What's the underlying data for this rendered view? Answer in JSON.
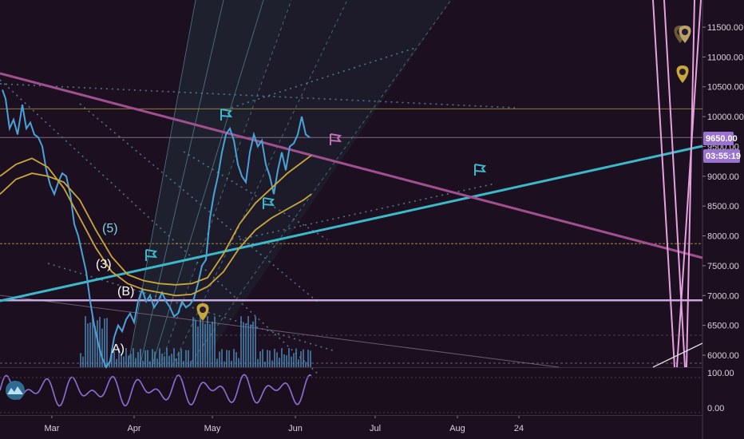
{
  "colors": {
    "background": "#1c0f1f",
    "price": "#4aa3d8",
    "ma": "#c9a63c",
    "trend_cyan": "#3bb8c9",
    "trend_magenta": "#a0508f",
    "horizontal_violet": "#c7a9dd",
    "oscillator": "#8e6fd6",
    "price_tag": "#9a72d0"
  },
  "chart_data": {
    "type": "line",
    "instrument_price_label": "9650.00",
    "countdown_label": "03:55:19",
    "x_ticks": [
      "Mar",
      "Apr",
      "May",
      "Jun",
      "Jul",
      "Aug",
      "24"
    ],
    "y_ticks": [
      "11500.00",
      "11000.00",
      "10500.00",
      "10000.00",
      "9500.00",
      "9000.00",
      "8500.00",
      "8000.00",
      "7500.00",
      "7000.00",
      "6500.00",
      "6000.00"
    ],
    "ylim": [
      5850,
      11700
    ],
    "oscillator_ticks": [
      "100.00",
      "0.00"
    ],
    "horizontal_levels": [
      10130,
      9650,
      7870,
      6920
    ],
    "wave_labels": [
      "(5)",
      "(3)",
      "(B)",
      "A)"
    ],
    "series": [
      {
        "name": "",
        "style": "price",
        "points": [
          [
            3,
            10450
          ],
          [
            7,
            10300
          ],
          [
            12,
            9800
          ],
          [
            17,
            9950
          ],
          [
            22,
            9700
          ],
          [
            28,
            10200
          ],
          [
            33,
            9800
          ],
          [
            38,
            9900
          ],
          [
            43,
            9700
          ],
          [
            48,
            9650
          ],
          [
            53,
            9500
          ],
          [
            58,
            9100
          ],
          [
            63,
            8850
          ],
          [
            68,
            8700
          ],
          [
            73,
            8900
          ],
          [
            78,
            9050
          ],
          [
            83,
            9000
          ],
          [
            88,
            8700
          ],
          [
            93,
            8200
          ],
          [
            98,
            8000
          ],
          [
            103,
            7700
          ],
          [
            108,
            7400
          ],
          [
            113,
            6900
          ],
          [
            118,
            6500
          ],
          [
            123,
            6200
          ],
          [
            128,
            5950
          ],
          [
            133,
            5800
          ],
          [
            138,
            5900
          ],
          [
            143,
            6300
          ],
          [
            148,
            6500
          ],
          [
            153,
            6400
          ],
          [
            158,
            6600
          ],
          [
            163,
            6700
          ],
          [
            168,
            6550
          ],
          [
            173,
            6900
          ],
          [
            178,
            7100
          ],
          [
            183,
            6900
          ],
          [
            188,
            7000
          ],
          [
            193,
            6800
          ],
          [
            198,
            6900
          ],
          [
            203,
            7050
          ],
          [
            208,
            6900
          ],
          [
            213,
            6800
          ],
          [
            218,
            6650
          ],
          [
            223,
            6700
          ],
          [
            228,
            6900
          ],
          [
            233,
            6800
          ],
          [
            238,
            6850
          ],
          [
            243,
            6950
          ],
          [
            248,
            7200
          ],
          [
            253,
            7500
          ],
          [
            258,
            7600
          ],
          [
            263,
            8300
          ],
          [
            268,
            8700
          ],
          [
            273,
            9000
          ],
          [
            278,
            9400
          ],
          [
            283,
            9700
          ],
          [
            288,
            9800
          ],
          [
            293,
            9600
          ],
          [
            298,
            9200
          ],
          [
            303,
            9000
          ],
          [
            308,
            8900
          ],
          [
            313,
            9400
          ],
          [
            318,
            9700
          ],
          [
            323,
            9500
          ],
          [
            328,
            9600
          ],
          [
            333,
            9200
          ],
          [
            338,
            9000
          ],
          [
            343,
            8700
          ],
          [
            348,
            9100
          ],
          [
            353,
            9400
          ],
          [
            358,
            9100
          ],
          [
            363,
            9500
          ],
          [
            368,
            9550
          ],
          [
            373,
            9700
          ],
          [
            378,
            10000
          ],
          [
            383,
            9700
          ],
          [
            388,
            9650
          ]
        ]
      },
      {
        "name": "",
        "style": "ma",
        "points": [
          [
            0,
            8700
          ],
          [
            20,
            8950
          ],
          [
            40,
            9050
          ],
          [
            60,
            9000
          ],
          [
            80,
            8900
          ],
          [
            100,
            8600
          ],
          [
            120,
            8100
          ],
          [
            140,
            7650
          ],
          [
            160,
            7350
          ],
          [
            180,
            7250
          ],
          [
            200,
            7200
          ],
          [
            220,
            7180
          ],
          [
            240,
            7200
          ],
          [
            260,
            7300
          ],
          [
            280,
            7700
          ],
          [
            300,
            8200
          ],
          [
            320,
            8550
          ],
          [
            340,
            8800
          ],
          [
            360,
            9050
          ],
          [
            380,
            9250
          ],
          [
            390,
            9350
          ]
        ]
      },
      {
        "name": "",
        "style": "ma",
        "points": [
          [
            0,
            9000
          ],
          [
            20,
            9200
          ],
          [
            40,
            9300
          ],
          [
            60,
            9150
          ],
          [
            80,
            8800
          ],
          [
            100,
            8300
          ],
          [
            120,
            7800
          ],
          [
            140,
            7400
          ],
          [
            160,
            7200
          ],
          [
            180,
            7100
          ],
          [
            200,
            7050
          ],
          [
            220,
            7000
          ],
          [
            240,
            7020
          ],
          [
            260,
            7150
          ],
          [
            280,
            7400
          ],
          [
            300,
            7800
          ],
          [
            320,
            8100
          ],
          [
            340,
            8300
          ],
          [
            360,
            8450
          ],
          [
            380,
            8600
          ],
          [
            390,
            8700
          ]
        ]
      }
    ]
  }
}
